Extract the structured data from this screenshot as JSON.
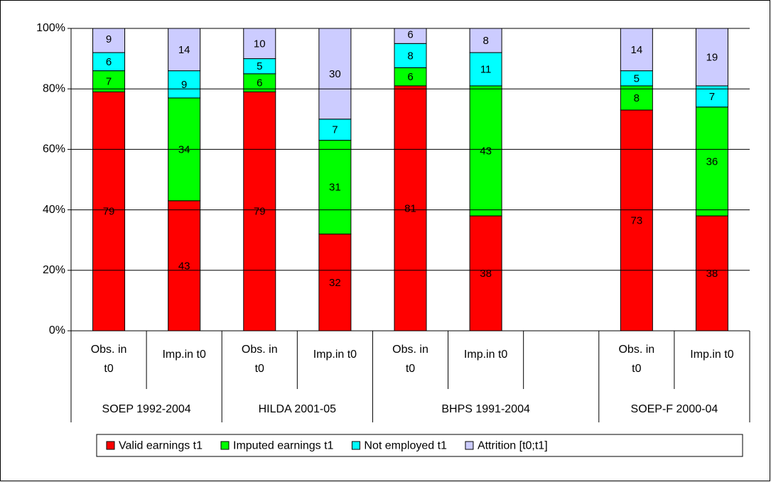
{
  "chart_data": {
    "type": "stacked_bar",
    "categories": [
      [
        "Obs. in t0",
        "SOEP 1992-2004"
      ],
      [
        "Imp.in t0",
        "SOEP 1992-2004"
      ],
      [
        "Obs. in t0",
        "HILDA 2001-05"
      ],
      [
        "Imp.in t0",
        "HILDA 2001-05"
      ],
      [
        "Obs. in t0",
        "BHPS 1991-2004"
      ],
      [
        "Imp.in t0",
        "BHPS 1991-2004"
      ],
      [
        null,
        "BHPS 1991-2004"
      ],
      [
        "Obs. in t0",
        "SOEP-F 2000-04"
      ],
      [
        "Imp.in t0",
        "SOEP-F 2000-04"
      ]
    ],
    "series": [
      {
        "name": "Valid earnings t1",
        "color": "#ff0000",
        "values": [
          79,
          43,
          79,
          32,
          81,
          38,
          null,
          73,
          38
        ]
      },
      {
        "name": "Imputed earnings t1",
        "color": "#00ff00",
        "values": [
          7,
          34,
          6,
          31,
          6,
          43,
          null,
          8,
          36
        ]
      },
      {
        "name": "Not employed t1",
        "color": "#00ffff",
        "values": [
          6,
          9,
          5,
          7,
          8,
          11,
          null,
          5,
          7
        ]
      },
      {
        "name": "Attrition [t0;t1]",
        "color": "#ccccff",
        "values": [
          9,
          14,
          10,
          30,
          6,
          8,
          null,
          14,
          19
        ]
      }
    ],
    "ylim": [
      0,
      100
    ],
    "yticks": [
      {
        "value": 0,
        "label": "0%"
      },
      {
        "value": 20,
        "label": "20%"
      },
      {
        "value": 40,
        "label": "40%"
      },
      {
        "value": 60,
        "label": "60%"
      },
      {
        "value": 80,
        "label": "80%"
      },
      {
        "value": 100,
        "label": "100%"
      }
    ],
    "grid": true,
    "legend": "bottom"
  }
}
